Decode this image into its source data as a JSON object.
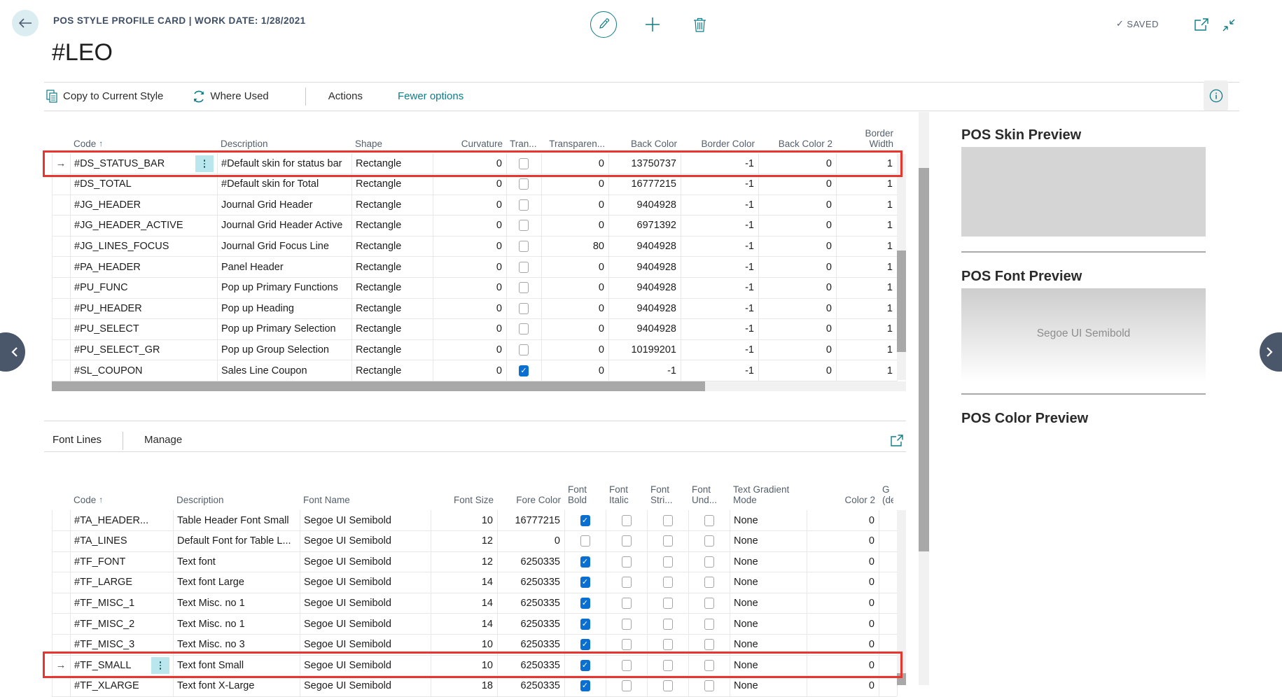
{
  "app": {
    "caption": "POS STYLE PROFILE CARD | WORK DATE: 1/28/2021",
    "record_title": "#LEO",
    "saved_label": "SAVED",
    "saved_check": "✓",
    "accent_color": "#0e7c87",
    "annotation_color": "#e8352e",
    "icons": [
      "back-arrow",
      "edit-pencil",
      "add-plus",
      "delete-trash",
      "open-in-new-window",
      "minimize-view",
      "info"
    ]
  },
  "action_bar": {
    "copy_label": "Copy to Current Style",
    "where_used_label": "Where Used",
    "actions_label": "Actions",
    "fewer_options_label": "Fewer options"
  },
  "style_grid": {
    "sort_arrow": "↑",
    "columns": [
      "Code",
      "Description",
      "Shape",
      "Curvature",
      "Tran...",
      "Transparen...",
      "Back Color",
      "Border Color",
      "Back Color 2",
      "Border Width"
    ],
    "rows": [
      {
        "code": "#DS_STATUS_BAR",
        "description": "#Default skin for status bar",
        "shape": "Rectangle",
        "curvature": "0",
        "transparent": false,
        "transparency": "0",
        "back_color": "13750737",
        "border_color": "-1",
        "back_color_2": "0",
        "border_width": "1",
        "selected": true
      },
      {
        "code": "#DS_TOTAL",
        "description": "#Default skin for Total",
        "shape": "Rectangle",
        "curvature": "0",
        "transparent": false,
        "transparency": "0",
        "back_color": "16777215",
        "border_color": "-1",
        "back_color_2": "0",
        "border_width": "1"
      },
      {
        "code": "#JG_HEADER",
        "description": "Journal Grid Header",
        "shape": "Rectangle",
        "curvature": "0",
        "transparent": false,
        "transparency": "0",
        "back_color": "9404928",
        "border_color": "-1",
        "back_color_2": "0",
        "border_width": "1"
      },
      {
        "code": "#JG_HEADER_ACTIVE",
        "description": "Journal Grid Header Active",
        "shape": "Rectangle",
        "curvature": "0",
        "transparent": false,
        "transparency": "0",
        "back_color": "6971392",
        "border_color": "-1",
        "back_color_2": "0",
        "border_width": "1"
      },
      {
        "code": "#JG_LINES_FOCUS",
        "description": "Journal Grid Focus Line",
        "shape": "Rectangle",
        "curvature": "0",
        "transparent": false,
        "transparency": "80",
        "back_color": "9404928",
        "border_color": "-1",
        "back_color_2": "0",
        "border_width": "1"
      },
      {
        "code": "#PA_HEADER",
        "description": "Panel Header",
        "shape": "Rectangle",
        "curvature": "0",
        "transparent": false,
        "transparency": "0",
        "back_color": "9404928",
        "border_color": "-1",
        "back_color_2": "0",
        "border_width": "1"
      },
      {
        "code": "#PU_FUNC",
        "description": "Pop up Primary Functions",
        "shape": "Rectangle",
        "curvature": "0",
        "transparent": false,
        "transparency": "0",
        "back_color": "9404928",
        "border_color": "-1",
        "back_color_2": "0",
        "border_width": "1"
      },
      {
        "code": "#PU_HEADER",
        "description": "Pop up Heading",
        "shape": "Rectangle",
        "curvature": "0",
        "transparent": false,
        "transparency": "0",
        "back_color": "9404928",
        "border_color": "-1",
        "back_color_2": "0",
        "border_width": "1"
      },
      {
        "code": "#PU_SELECT",
        "description": "Pop up Primary Selection",
        "shape": "Rectangle",
        "curvature": "0",
        "transparent": false,
        "transparency": "0",
        "back_color": "9404928",
        "border_color": "-1",
        "back_color_2": "0",
        "border_width": "1"
      },
      {
        "code": "#PU_SELECT_GR",
        "description": "Pop up Group Selection",
        "shape": "Rectangle",
        "curvature": "0",
        "transparent": false,
        "transparency": "0",
        "back_color": "10199201",
        "border_color": "-1",
        "back_color_2": "0",
        "border_width": "1"
      },
      {
        "code": "#SL_COUPON",
        "description": "Sales Line Coupon",
        "shape": "Rectangle",
        "curvature": "0",
        "transparent": true,
        "transparency": "0",
        "back_color": "-1",
        "border_color": "-1",
        "back_color_2": "0",
        "border_width": "1"
      }
    ]
  },
  "font_lines": {
    "title": "Font Lines",
    "manage_label": "Manage",
    "sort_arrow": "↑",
    "columns": [
      "Code",
      "Description",
      "Font Name",
      "Font Size",
      "Fore Color",
      "Font Bold",
      "Font Italic",
      "Font Stri...",
      "Font Und...",
      "Text Gradient Mode",
      "Color 2",
      "G (de"
    ],
    "rows": [
      {
        "code": "#TA_HEADER...",
        "description": "Table Header Font Small",
        "font_name": "Segoe UI Semibold",
        "font_size": "10",
        "fore_color": "16777215",
        "bold": true,
        "italic": false,
        "strike": false,
        "underline": false,
        "gradient_mode": "None",
        "color_2": "0"
      },
      {
        "code": "#TA_LINES",
        "description": "Default Font for Table L...",
        "font_name": "Segoe UI Semibold",
        "font_size": "12",
        "fore_color": "0",
        "bold": false,
        "italic": false,
        "strike": false,
        "underline": false,
        "gradient_mode": "None",
        "color_2": "0"
      },
      {
        "code": "#TF_FONT",
        "description": "Text font",
        "font_name": "Segoe UI Semibold",
        "font_size": "12",
        "fore_color": "6250335",
        "bold": true,
        "italic": false,
        "strike": false,
        "underline": false,
        "gradient_mode": "None",
        "color_2": "0"
      },
      {
        "code": "#TF_LARGE",
        "description": "Text font Large",
        "font_name": "Segoe UI Semibold",
        "font_size": "14",
        "fore_color": "6250335",
        "bold": true,
        "italic": false,
        "strike": false,
        "underline": false,
        "gradient_mode": "None",
        "color_2": "0"
      },
      {
        "code": "#TF_MISC_1",
        "description": "Text Misc. no 1",
        "font_name": "Segoe UI Semibold",
        "font_size": "14",
        "fore_color": "6250335",
        "bold": true,
        "italic": false,
        "strike": false,
        "underline": false,
        "gradient_mode": "None",
        "color_2": "0"
      },
      {
        "code": "#TF_MISC_2",
        "description": "Text Misc. no 1",
        "font_name": "Segoe UI Semibold",
        "font_size": "14",
        "fore_color": "6250335",
        "bold": true,
        "italic": false,
        "strike": false,
        "underline": false,
        "gradient_mode": "None",
        "color_2": "0"
      },
      {
        "code": "#TF_MISC_3",
        "description": "Text Misc. no 3",
        "font_name": "Segoe UI Semibold",
        "font_size": "10",
        "fore_color": "6250335",
        "bold": true,
        "italic": false,
        "strike": false,
        "underline": false,
        "gradient_mode": "None",
        "color_2": "0"
      },
      {
        "code": "#TF_SMALL",
        "description": "Text font Small",
        "font_name": "Segoe UI Semibold",
        "font_size": "10",
        "fore_color": "6250335",
        "bold": true,
        "italic": false,
        "strike": false,
        "underline": false,
        "gradient_mode": "None",
        "color_2": "0",
        "selected": true
      },
      {
        "code": "#TF_XLARGE",
        "description": "Text font X-Large",
        "font_name": "Segoe UI Semibold",
        "font_size": "18",
        "fore_color": "6250335",
        "bold": true,
        "italic": false,
        "strike": false,
        "underline": false,
        "gradient_mode": "None",
        "color_2": "0"
      }
    ]
  },
  "factbox": {
    "skin_title": "POS Skin Preview",
    "font_title": "POS Font Preview",
    "font_sample": "Segoe UI Semibold",
    "color_title": "POS Color Preview"
  }
}
